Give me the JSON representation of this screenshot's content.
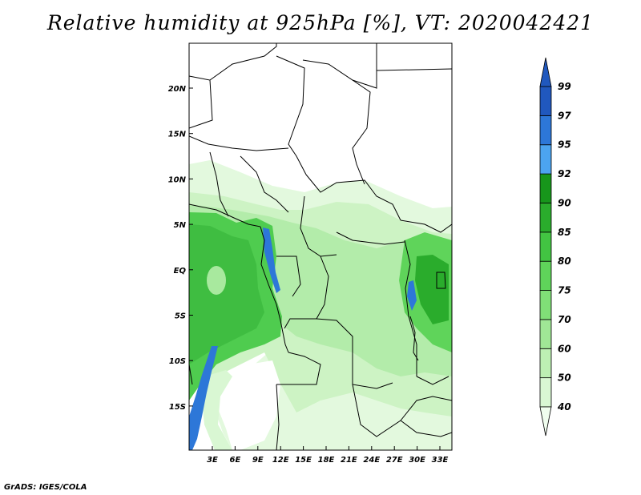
{
  "title": "Relative humidity at 925hPa [%], VT: 2020042421",
  "credit": "GrADS: IGES/COLA",
  "map": {
    "lat_labels": [
      "20N",
      "15N",
      "10N",
      "5N",
      "EQ",
      "5S",
      "10S",
      "15S"
    ],
    "lon_labels": [
      "3E",
      "6E",
      "9E",
      "12E",
      "15E",
      "18E",
      "21E",
      "24E",
      "27E",
      "30E",
      "33E"
    ]
  },
  "colorbar": {
    "levels": [
      "40",
      "50",
      "60",
      "70",
      "75",
      "80",
      "85",
      "90",
      "92",
      "95",
      "97",
      "99"
    ],
    "colors": [
      "#f0fdee",
      "#d9f7d3",
      "#bdefb3",
      "#a0e796",
      "#80df77",
      "#5fd45a",
      "#42c442",
      "#2aac2c",
      "#17961b",
      "#4ca4f0",
      "#2d77d8",
      "#2058be"
    ]
  }
}
